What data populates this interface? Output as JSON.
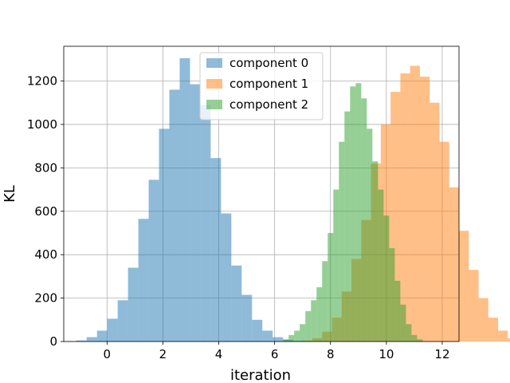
{
  "chart_data": {
    "type": "histogram",
    "title": "",
    "xlabel": "iteration",
    "ylabel": "KL",
    "xlim": [
      -1.55,
      12.6
    ],
    "ylim": [
      0,
      1360
    ],
    "xticks": [
      0,
      2,
      4,
      6,
      8,
      10,
      12
    ],
    "yticks": [
      0,
      200,
      400,
      600,
      800,
      1000,
      1200
    ],
    "grid": true,
    "legend": {
      "position": "top-center"
    },
    "alpha": 0.5,
    "series": [
      {
        "name": "component 0",
        "color": "#1f77b4",
        "bin_start": -1.1,
        "bin_width": 0.37,
        "counts": [
          5,
          20,
          50,
          105,
          190,
          340,
          565,
          745,
          980,
          1160,
          1305,
          1185,
          1090,
          845,
          590,
          350,
          215,
          100,
          50,
          20,
          8,
          3
        ]
      },
      {
        "name": "component 1",
        "color": "#ff7f0e",
        "bin_start": 7.0,
        "bin_width": 0.35,
        "counts": [
          5,
          15,
          45,
          110,
          230,
          380,
          560,
          820,
          1000,
          1150,
          1235,
          1270,
          1220,
          1100,
          920,
          710,
          510,
          330,
          200,
          110,
          50,
          15,
          5
        ]
      },
      {
        "name": "component 2",
        "color": "#2ca02c",
        "bin_start": 6.3,
        "bin_width": 0.2,
        "counts": [
          10,
          30,
          50,
          80,
          140,
          190,
          250,
          370,
          500,
          700,
          920,
          1060,
          1175,
          1190,
          1120,
          980,
          830,
          700,
          580,
          430,
          280,
          170,
          80,
          30,
          10
        ]
      }
    ]
  }
}
